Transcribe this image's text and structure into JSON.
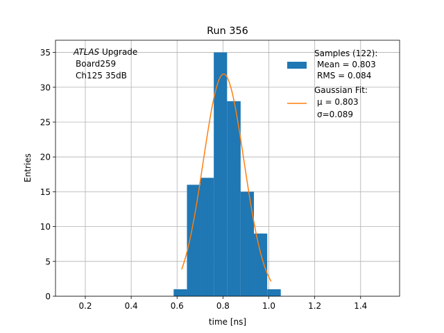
{
  "chart_data": {
    "type": "bar",
    "title": "Run 356",
    "xlabel": "time [ns]",
    "ylabel": "Entries",
    "xlim": [
      0.07,
      1.57
    ],
    "ylim": [
      0,
      36.75
    ],
    "grid": true,
    "xticks": [
      0.2,
      0.4,
      0.6,
      0.8,
      1.0,
      1.2,
      1.4
    ],
    "xtick_labels": [
      "0.2",
      "0.4",
      "0.6",
      "0.8",
      "1.0",
      "1.2",
      "1.4"
    ],
    "yticks": [
      0,
      5,
      10,
      15,
      20,
      25,
      30,
      35
    ],
    "ytick_labels": [
      "0",
      "5",
      "10",
      "15",
      "20",
      "25",
      "30",
      "35"
    ],
    "bins": {
      "edges": [
        0.585,
        0.643,
        0.702,
        0.76,
        0.818,
        0.877,
        0.935,
        0.993,
        1.052
      ],
      "counts": [
        1,
        16,
        17,
        35,
        28,
        15,
        9,
        1
      ],
      "color": "#1f77b4"
    },
    "fit": {
      "mu": 0.803,
      "sigma": 0.089,
      "amplitude": 31.9,
      "x_range": [
        0.62,
        1.01
      ],
      "color": "#ff7f0e"
    },
    "annotation": {
      "experiment": "ATLAS",
      "experiment_suffix": " Upgrade",
      "line2": "Board259",
      "line3": "Ch125 35dB"
    },
    "legend": {
      "position": "upper right",
      "entries": [
        {
          "kind": "patch",
          "color": "#1f77b4",
          "lines": [
            "Samples (122):",
            "Mean = 0.803",
            "RMS = 0.084"
          ]
        },
        {
          "kind": "line",
          "color": "#ff7f0e",
          "lines": [
            "Gaussian Fit:",
            "μ = 0.803",
            "σ=0.089"
          ]
        }
      ]
    }
  }
}
